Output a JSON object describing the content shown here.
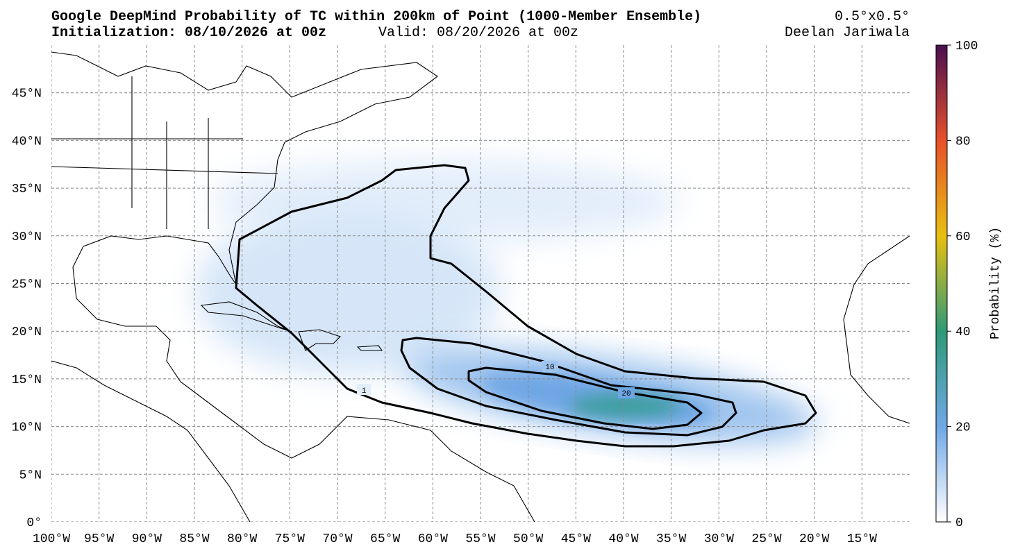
{
  "header": {
    "title": "Google DeepMind Probability of TC within 200km of Point (1000-Member Ensemble)",
    "initialization": "Initialization: 08/10/2026 at 00z",
    "valid": "Valid: 08/20/2026 at 00z",
    "resolution": "0.5°x0.5°",
    "author": "Deelan Jariwala"
  },
  "map": {
    "xlim": [
      -100,
      -10
    ],
    "ylim": [
      0,
      50
    ],
    "xticks": [
      {
        "value": -100,
        "label": "100°W"
      },
      {
        "value": -95,
        "label": "95°W"
      },
      {
        "value": -90,
        "label": "90°W"
      },
      {
        "value": -85,
        "label": "85°W"
      },
      {
        "value": -80,
        "label": "80°W"
      },
      {
        "value": -75,
        "label": "75°W"
      },
      {
        "value": -70,
        "label": "70°W"
      },
      {
        "value": -65,
        "label": "65°W"
      },
      {
        "value": -60,
        "label": "60°W"
      },
      {
        "value": -55,
        "label": "55°W"
      },
      {
        "value": -50,
        "label": "50°W"
      },
      {
        "value": -45,
        "label": "45°W"
      },
      {
        "value": -40,
        "label": "40°W"
      },
      {
        "value": -35,
        "label": "35°W"
      },
      {
        "value": -30,
        "label": "30°W"
      },
      {
        "value": -25,
        "label": "25°W"
      },
      {
        "value": -20,
        "label": "20°W"
      },
      {
        "value": -15,
        "label": "15°W"
      }
    ],
    "yticks": [
      {
        "value": 0,
        "label": "0°"
      },
      {
        "value": 5,
        "label": "5°N"
      },
      {
        "value": 10,
        "label": "10°N"
      },
      {
        "value": 15,
        "label": "15°N"
      },
      {
        "value": 20,
        "label": "20°N"
      },
      {
        "value": 25,
        "label": "25°N"
      },
      {
        "value": 30,
        "label": "30°N"
      },
      {
        "value": 35,
        "label": "35°N"
      },
      {
        "value": 40,
        "label": "40°N"
      },
      {
        "value": 45,
        "label": "45°N"
      }
    ],
    "contour_labels": [
      "1",
      "10",
      "20"
    ]
  },
  "colorbar": {
    "label": "Probability (%)",
    "lim": [
      0,
      100
    ],
    "ticks": [
      0,
      20,
      40,
      60,
      80,
      100
    ]
  }
}
